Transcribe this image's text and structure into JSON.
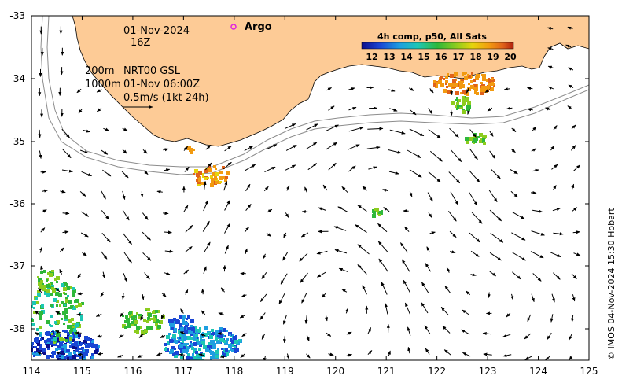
{
  "map": {
    "date_label": "01-Nov-2024",
    "hour_label": "16Z",
    "depth_line_1": "200m",
    "product_label": "NRT00 GSL",
    "depth_line_2": "1000m",
    "analysis_time": "01-Nov 06:00Z",
    "scale_label": "0.5m/s (1kt 24h)",
    "argo_label": "Argo",
    "credit": "© IMOS 04-Nov-2024 15:30 Hobart",
    "lon_ticks": [
      "114",
      "115",
      "116",
      "117",
      "118",
      "119",
      "120",
      "121",
      "122",
      "123",
      "124",
      "125"
    ],
    "lat_ticks": [
      "-33",
      "-34",
      "-35",
      "-36",
      "-37",
      "-38"
    ],
    "land_color": "#fdcb96",
    "background_color": "#ffffff"
  },
  "legend": {
    "title": "4h comp, p50, All Sats",
    "ticks": [
      "12",
      "13",
      "14",
      "15",
      "16",
      "17",
      "18",
      "19",
      "20"
    ],
    "colors": [
      "#0b0d8c",
      "#1a46d4",
      "#1e9ee0",
      "#1dc7b4",
      "#2fb83a",
      "#8ccc1e",
      "#e6d40c",
      "#f29a10",
      "#e0621a",
      "#b0200e"
    ]
  }
}
